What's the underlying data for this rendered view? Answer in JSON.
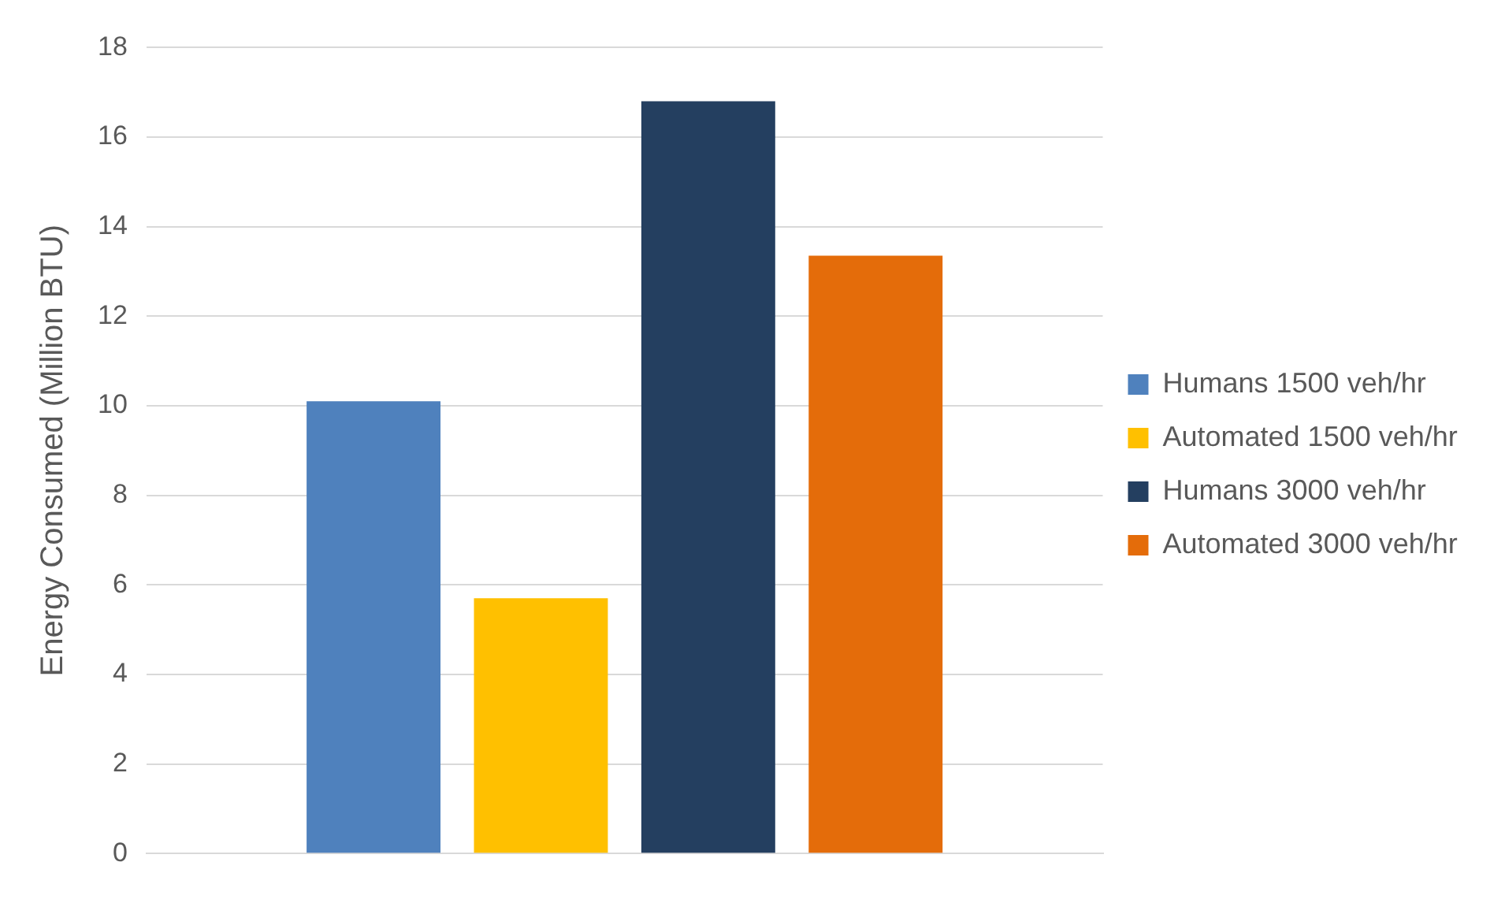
{
  "chart_data": {
    "type": "bar",
    "ylabel": "Energy Consumed (Million BTU)",
    "categories": [
      null
    ],
    "series": [
      {
        "name": "Humans 1500 veh/hr",
        "color": "#4f81bd",
        "values": [
          10.1
        ]
      },
      {
        "name": "Automated 1500 veh/hr",
        "color": "#ffc000",
        "values": [
          5.7
        ]
      },
      {
        "name": "Humans 3000 veh/hr",
        "color": "#243f60",
        "values": [
          16.8
        ]
      },
      {
        "name": "Automated 3000 veh/hr",
        "color": "#e46c0a",
        "values": [
          13.35
        ]
      }
    ],
    "ylim": [
      0,
      18
    ],
    "yticks": [
      0,
      2,
      4,
      6,
      8,
      10,
      12,
      14,
      16,
      18
    ],
    "grid": "y",
    "legend": "right"
  }
}
